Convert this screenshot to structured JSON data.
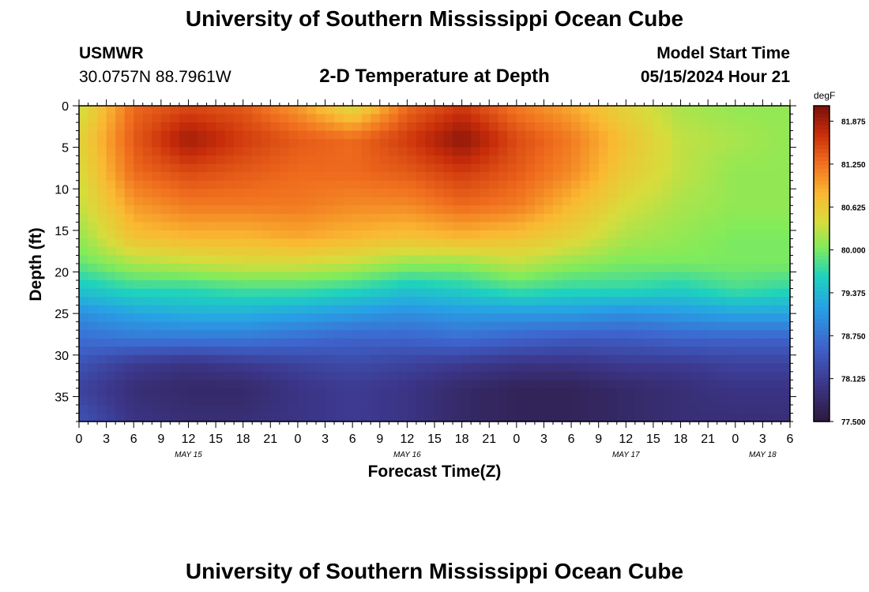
{
  "header": {
    "title": "University of Southern Mississippi Ocean Cube",
    "station": "USMWR",
    "coords": "30.0757N  88.7961W",
    "subtitle": "2-D Temperature at Depth",
    "start_label": "Model Start Time",
    "start_value": "05/15/2024 Hour 21"
  },
  "footer": {
    "title": "University of Southern Mississippi Ocean Cube"
  },
  "chart_data": {
    "type": "heatmap",
    "title": "2-D Temperature at Depth",
    "xlabel": "Forecast Time(Z)",
    "ylabel": "Depth (ft)",
    "x_ticks": [
      "0",
      "3",
      "6",
      "9",
      "12",
      "15",
      "18",
      "21",
      "0",
      "3",
      "6",
      "9",
      "12",
      "15",
      "18",
      "21",
      "0",
      "3",
      "6",
      "9",
      "12",
      "15",
      "18",
      "21",
      "0",
      "3",
      "6"
    ],
    "day_labels": [
      {
        "label": "MAY 15",
        "tick_index": 4
      },
      {
        "label": "MAY 16",
        "tick_index": 12
      },
      {
        "label": "MAY 17",
        "tick_index": 20
      },
      {
        "label": "MAY 18",
        "tick_index": 25
      }
    ],
    "y_ticks": [
      0,
      5,
      10,
      15,
      20,
      25,
      30,
      35
    ],
    "ylim": [
      0,
      38
    ],
    "xlim_hours": [
      0,
      78
    ],
    "colorbar": {
      "unit": "degF",
      "range": [
        77.5,
        82.1
      ],
      "ticks": [
        "81.875",
        "81.250",
        "80.625",
        "80.000",
        "79.375",
        "78.750",
        "78.125",
        "77.500"
      ],
      "tick_values": [
        81.875,
        81.25,
        80.625,
        80.0,
        79.375,
        78.75,
        78.125,
        77.5
      ]
    },
    "forecast_hours": [
      0,
      6,
      12,
      18,
      24,
      30,
      36,
      42,
      48,
      54,
      60,
      66,
      72,
      78
    ],
    "depths_ft": [
      0,
      4,
      8,
      12,
      16,
      19,
      22,
      25,
      28,
      31,
      34,
      38
    ],
    "temperature_degF": [
      [
        80.3,
        81.3,
        81.5,
        81.4,
        81.0,
        80.4,
        81.3,
        81.6,
        81.2,
        80.9,
        80.5,
        80.2,
        80.1,
        80.1
      ],
      [
        80.5,
        81.4,
        81.9,
        81.6,
        81.4,
        81.3,
        81.6,
        82.0,
        81.5,
        81.2,
        80.7,
        80.3,
        80.2,
        80.1
      ],
      [
        80.4,
        81.3,
        81.5,
        81.4,
        81.3,
        81.3,
        81.4,
        81.6,
        81.4,
        81.1,
        80.6,
        80.3,
        80.1,
        80.1
      ],
      [
        80.3,
        81.0,
        81.2,
        81.2,
        81.2,
        81.1,
        81.1,
        81.3,
        81.2,
        80.8,
        80.4,
        80.2,
        80.1,
        80.1
      ],
      [
        80.1,
        80.7,
        80.8,
        80.8,
        80.9,
        80.8,
        80.7,
        80.8,
        80.7,
        80.5,
        80.2,
        80.1,
        80.0,
        80.0
      ],
      [
        79.9,
        80.2,
        80.3,
        80.4,
        80.4,
        80.3,
        80.1,
        80.1,
        80.3,
        80.1,
        80.0,
        80.0,
        80.0,
        80.0
      ],
      [
        79.5,
        79.7,
        79.7,
        79.8,
        79.8,
        79.7,
        79.5,
        79.6,
        79.8,
        79.7,
        79.7,
        79.6,
        79.8,
        79.7
      ],
      [
        79.0,
        79.2,
        79.3,
        79.3,
        79.2,
        79.1,
        79.0,
        79.1,
        79.1,
        79.1,
        79.0,
        79.1,
        79.2,
        79.2
      ],
      [
        78.7,
        78.8,
        78.8,
        78.8,
        78.7,
        78.6,
        78.6,
        78.7,
        78.6,
        78.5,
        78.5,
        78.6,
        78.6,
        78.6
      ],
      [
        78.4,
        78.1,
        78.0,
        78.1,
        78.2,
        78.3,
        78.2,
        78.1,
        78.0,
        78.0,
        78.1,
        78.1,
        78.2,
        78.2
      ],
      [
        78.2,
        77.9,
        77.8,
        77.8,
        78.0,
        78.1,
        78.0,
        77.8,
        77.7,
        77.7,
        77.8,
        77.9,
        78.0,
        78.0
      ],
      [
        78.4,
        78.0,
        77.9,
        77.9,
        78.0,
        78.1,
        78.0,
        77.8,
        77.7,
        77.7,
        77.8,
        77.9,
        77.9,
        77.9
      ]
    ]
  }
}
